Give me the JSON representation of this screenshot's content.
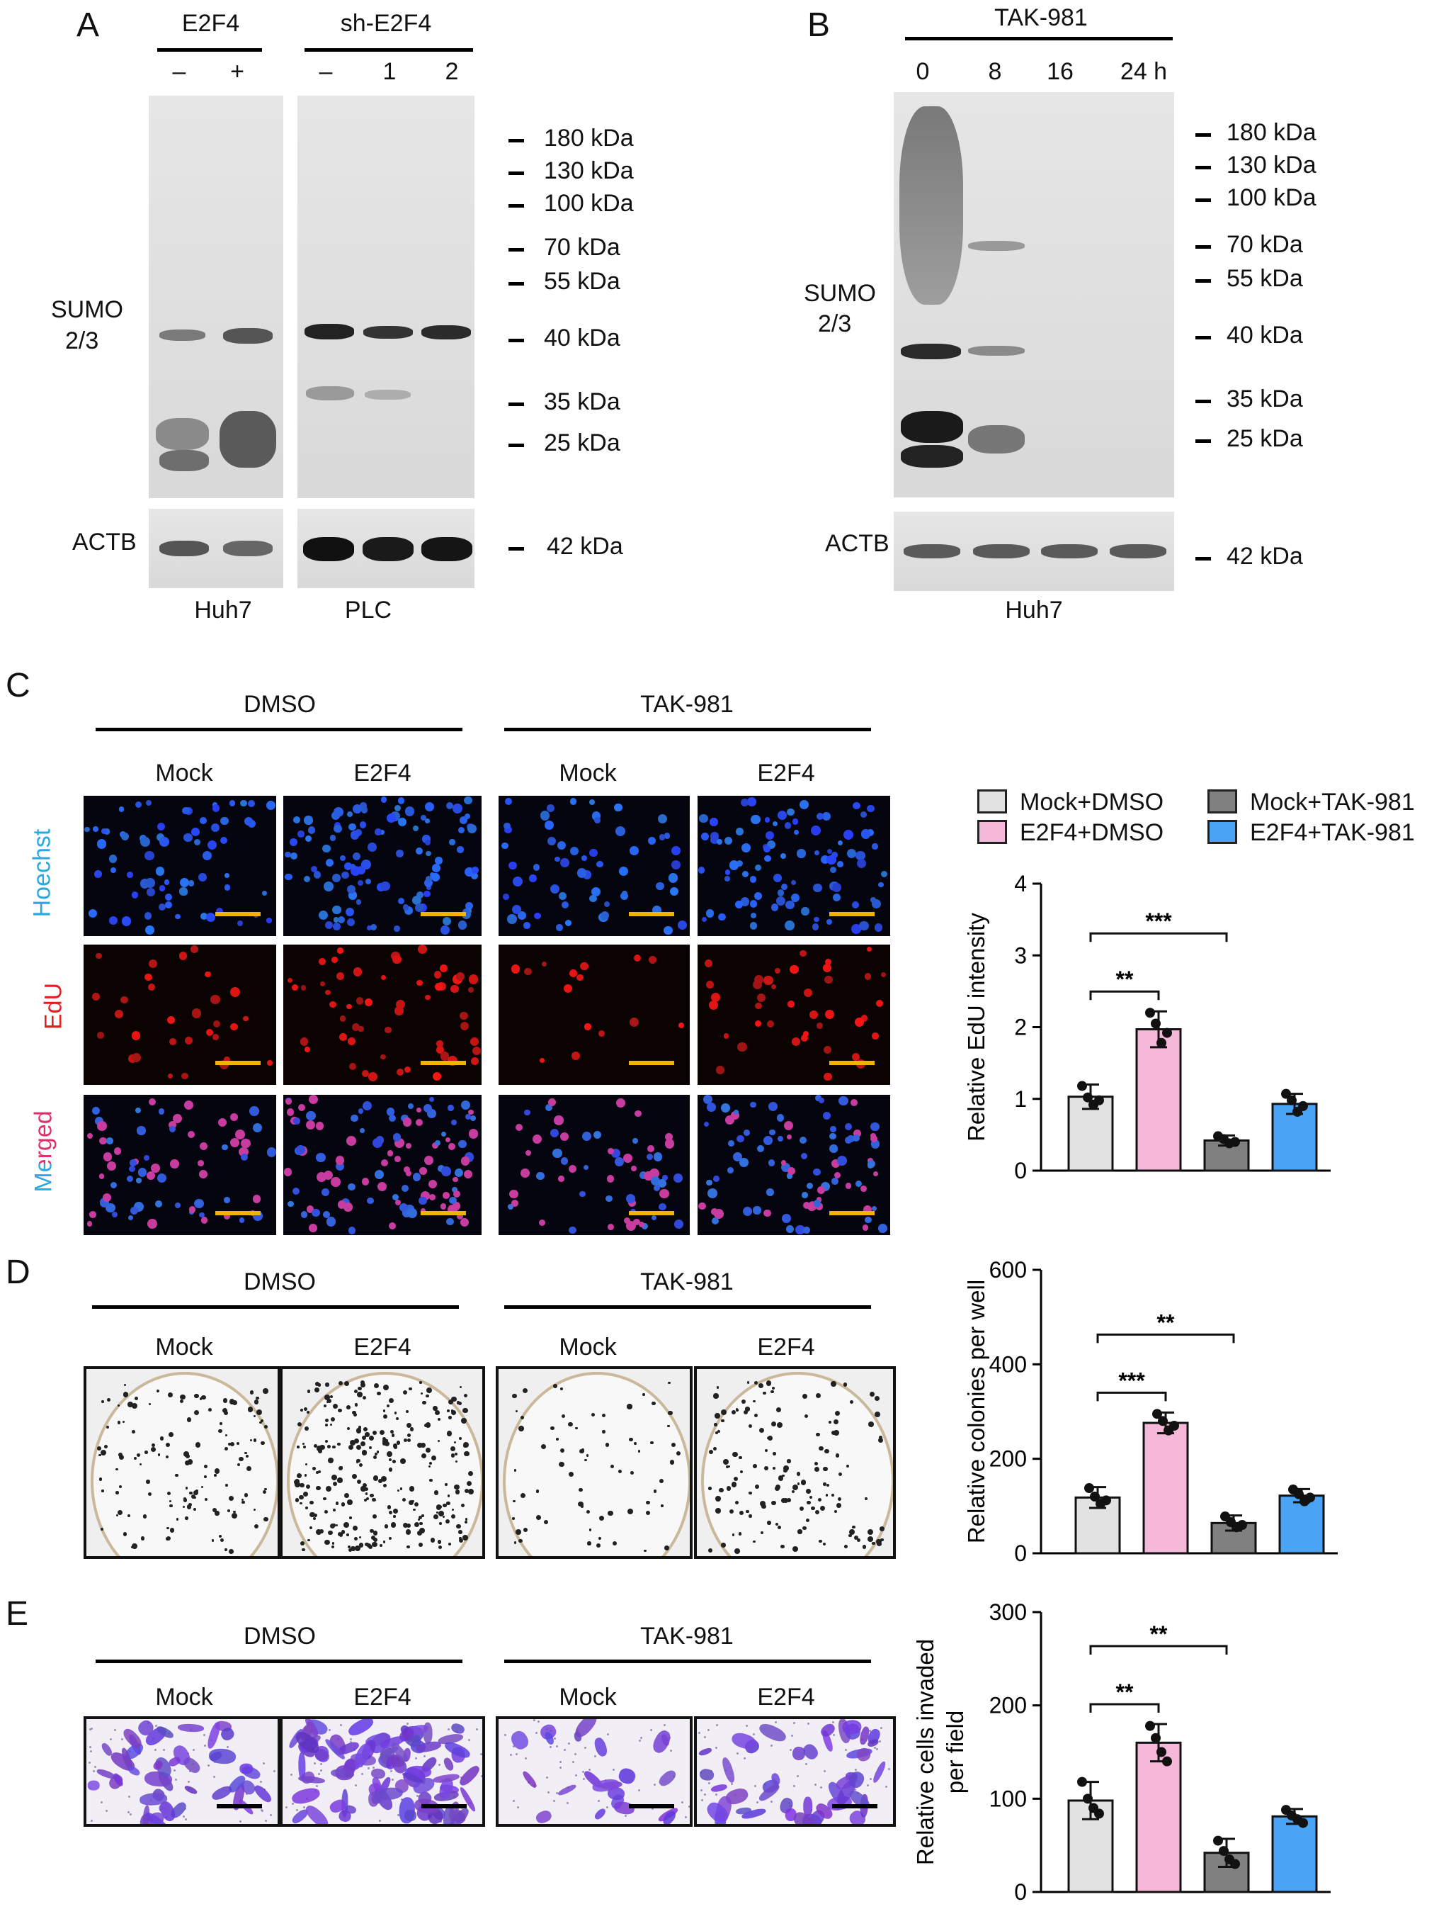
{
  "panel_a": {
    "letter": "A",
    "group1": "E2F4",
    "group1_lanes": [
      "–",
      "+"
    ],
    "group2": "sh-E2F4",
    "group2_lanes": [
      "–",
      "1",
      "2"
    ],
    "row_label_1": "SUMO",
    "row_label_2": "2/3",
    "loading": "ACTB",
    "markers": [
      "180 kDa",
      "130 kDa",
      "100 kDa",
      "70 kDa",
      "55 kDa",
      "40 kDa",
      "35 kDa",
      "25 kDa"
    ],
    "loading_marker": "42 kDa",
    "cell_line_1": "Huh7",
    "cell_line_2": "PLC"
  },
  "panel_b": {
    "letter": "B",
    "treatment": "TAK-981",
    "lanes": [
      "0",
      "8",
      "16",
      "24 h"
    ],
    "row_label_1": "SUMO",
    "row_label_2": "2/3",
    "loading": "ACTB",
    "markers": [
      "180 kDa",
      "130 kDa",
      "100 kDa",
      "70 kDa",
      "55 kDa",
      "40 kDa",
      "35 kDa",
      "25 kDa"
    ],
    "loading_marker": "42 kDa",
    "cell_line": "Huh7"
  },
  "panel_c": {
    "letter": "C",
    "group1": "DMSO",
    "group2": "TAK-981",
    "cols": [
      "Mock",
      "E2F4",
      "Mock",
      "E2F4"
    ],
    "row_hoechst": "Hoechst",
    "row_edu": "EdU",
    "row_merged": "Merged",
    "colors": {
      "hoechst": "#2aa8e0",
      "edu": "#e02020",
      "merged_a": "#e0306a",
      "merged_b": "#2aa8e0"
    }
  },
  "panel_d": {
    "letter": "D",
    "group1": "DMSO",
    "group2": "TAK-981",
    "cols": [
      "Mock",
      "E2F4",
      "Mock",
      "E2F4"
    ]
  },
  "panel_e": {
    "letter": "E",
    "group1": "DMSO",
    "group2": "TAK-981",
    "cols": [
      "Mock",
      "E2F4",
      "Mock",
      "E2F4"
    ]
  },
  "legend": {
    "items": [
      {
        "label": "Mock+DMSO",
        "color": "#e2e2e2"
      },
      {
        "label": "Mock+TAK-981",
        "color": "#808080"
      },
      {
        "label": "E2F4+DMSO",
        "color": "#f6b8d8"
      },
      {
        "label": "E2F4+TAK-981",
        "color": "#4aa3f5"
      }
    ]
  },
  "chart_data": [
    {
      "type": "bar",
      "ylabel": "Relative EdU intensity",
      "ylim": [
        0,
        4
      ],
      "yticks": [
        0,
        1,
        2,
        3,
        4
      ],
      "categories": [
        "Mock+DMSO",
        "E2F4+DMSO",
        "Mock+TAK-981",
        "E2F4+TAK-981"
      ],
      "values": [
        1.03,
        1.97,
        0.42,
        0.93
      ],
      "errors": [
        0.17,
        0.25,
        0.07,
        0.14
      ],
      "points": [
        [
          1.18,
          1.02,
          0.92,
          0.98
        ],
        [
          2.2,
          2.05,
          1.78,
          1.92
        ],
        [
          0.48,
          0.44,
          0.38,
          0.4
        ],
        [
          1.07,
          0.98,
          0.82,
          0.9
        ]
      ],
      "colors": [
        "#e2e2e2",
        "#f6b8d8",
        "#808080",
        "#4aa3f5"
      ],
      "significance": [
        {
          "from": 0,
          "to": 1,
          "label": "**"
        },
        {
          "from": 0,
          "to": 2,
          "label": "***"
        }
      ]
    },
    {
      "type": "bar",
      "ylabel": "Relative colonies per well",
      "ylim": [
        0,
        600
      ],
      "yticks": [
        0,
        200,
        400,
        600
      ],
      "categories": [
        "Mock+DMSO",
        "E2F4+DMSO",
        "Mock+TAK-981",
        "E2F4+TAK-981"
      ],
      "values": [
        118,
        276,
        64,
        122
      ],
      "errors": [
        22,
        22,
        16,
        14
      ],
      "points": [
        [
          138,
          120,
          105,
          112
        ],
        [
          295,
          280,
          260,
          270
        ],
        [
          78,
          66,
          55,
          60
        ],
        [
          135,
          125,
          110,
          118
        ]
      ],
      "colors": [
        "#e2e2e2",
        "#f6b8d8",
        "#808080",
        "#4aa3f5"
      ],
      "significance": [
        {
          "from": 0,
          "to": 1,
          "label": "***"
        },
        {
          "from": 0,
          "to": 2,
          "label": "**"
        }
      ]
    },
    {
      "type": "bar",
      "ylabel": "Relative cells invaded per field",
      "ylim": [
        0,
        300
      ],
      "yticks": [
        0,
        100,
        200,
        300
      ],
      "categories": [
        "Mock+DMSO",
        "E2F4+DMSO",
        "Mock+TAK-981",
        "E2F4+TAK-981"
      ],
      "values": [
        98,
        160,
        42,
        81
      ],
      "errors": [
        20,
        20,
        15,
        8
      ],
      "points": [
        [
          118,
          100,
          90,
          84
        ],
        [
          178,
          165,
          150,
          140
        ],
        [
          55,
          44,
          35,
          30
        ],
        [
          88,
          82,
          78,
          74
        ]
      ],
      "colors": [
        "#e2e2e2",
        "#f6b8d8",
        "#808080",
        "#4aa3f5"
      ],
      "significance": [
        {
          "from": 0,
          "to": 1,
          "label": "**"
        },
        {
          "from": 0,
          "to": 2,
          "label": "**"
        }
      ]
    }
  ]
}
